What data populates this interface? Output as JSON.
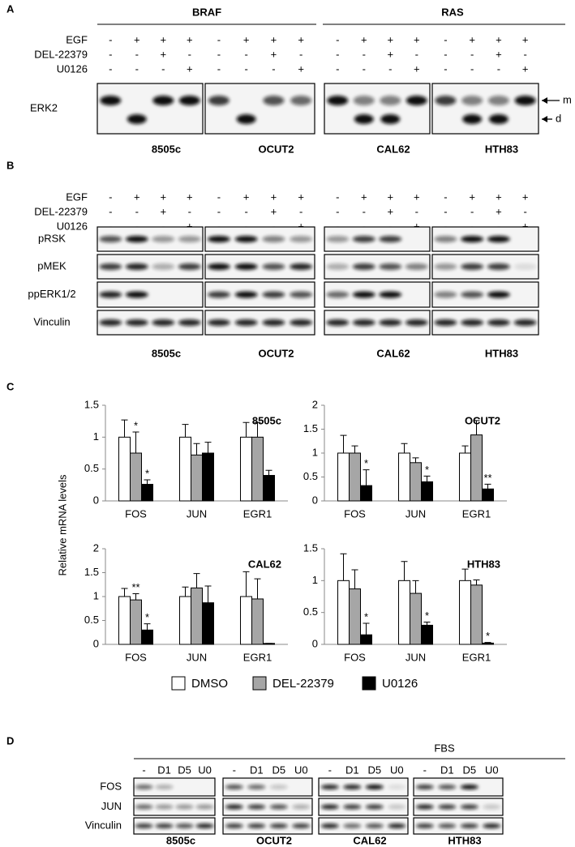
{
  "panel_a": {
    "label": "A",
    "groups": [
      "BRAF",
      "RAS"
    ],
    "treatments": [
      {
        "name": "EGF",
        "signs": [
          "-",
          "+",
          "+",
          "+"
        ]
      },
      {
        "name": "DEL-22379",
        "signs": [
          "-",
          "-",
          "+",
          "-"
        ]
      },
      {
        "name": "U0126",
        "signs": [
          "-",
          "-",
          "-",
          "+"
        ]
      }
    ],
    "blots": [
      "ERK2"
    ],
    "cell_lines": [
      "8505c",
      "OCUT2",
      "CAL62",
      "HTH83"
    ],
    "markers": [
      "m",
      "d"
    ]
  },
  "panel_b": {
    "label": "B",
    "treatments": [
      {
        "name": "EGF",
        "signs": [
          "-",
          "+",
          "+",
          "+"
        ]
      },
      {
        "name": "DEL-22379",
        "signs": [
          "-",
          "-",
          "+",
          "-"
        ]
      },
      {
        "name": "U0126",
        "signs": [
          "-",
          "-",
          "-",
          "+"
        ]
      }
    ],
    "blots": [
      "pRSK",
      "pMEK",
      "ppERK1/2",
      "Vinculin"
    ],
    "cell_lines": [
      "8505c",
      "OCUT2",
      "CAL62",
      "HTH83"
    ]
  },
  "panel_c": {
    "label": "C",
    "y_label": "Relative mRNA levels"
  },
  "chart_data": [
    {
      "type": "bar",
      "title": "8505c",
      "categories": [
        "FOS",
        "JUN",
        "EGR1"
      ],
      "ylim": [
        0,
        1.5
      ],
      "yticks": [
        0,
        0.5,
        1,
        1.5
      ],
      "series": [
        {
          "name": "DMSO",
          "color": "#ffffff",
          "values": [
            1,
            1,
            1
          ],
          "errors": [
            0.27,
            0.2,
            0.23
          ],
          "annotations": [
            null,
            null,
            null
          ]
        },
        {
          "name": "DEL-22379",
          "color": "#a6a6a6",
          "values": [
            0.75,
            0.72,
            1.0
          ],
          "errors": [
            0.33,
            0.18,
            0.23
          ],
          "annotations": [
            "*",
            null,
            null
          ]
        },
        {
          "name": "U0126",
          "color": "#000000",
          "values": [
            0.26,
            0.75,
            0.4
          ],
          "errors": [
            0.07,
            0.17,
            0.08
          ],
          "annotations": [
            "*",
            null,
            null
          ]
        }
      ]
    },
    {
      "type": "bar",
      "title": "OCUT2",
      "categories": [
        "FOS",
        "JUN",
        "EGR1"
      ],
      "ylim": [
        0,
        2
      ],
      "yticks": [
        0,
        0.5,
        1,
        1.5,
        2
      ],
      "series": [
        {
          "name": "DMSO",
          "color": "#ffffff",
          "values": [
            1,
            1,
            1
          ],
          "errors": [
            0.37,
            0.2,
            0.15
          ],
          "annotations": [
            null,
            null,
            null
          ]
        },
        {
          "name": "DEL-22379",
          "color": "#a6a6a6",
          "values": [
            1.0,
            0.8,
            1.38
          ],
          "errors": [
            0.15,
            0.1,
            0.3
          ],
          "annotations": [
            null,
            null,
            null
          ]
        },
        {
          "name": "U0126",
          "color": "#000000",
          "values": [
            0.32,
            0.4,
            0.25
          ],
          "errors": [
            0.33,
            0.12,
            0.1
          ],
          "annotations": [
            "*",
            "*",
            "**"
          ]
        }
      ]
    },
    {
      "type": "bar",
      "title": "CAL62",
      "categories": [
        "FOS",
        "JUN",
        "EGR1"
      ],
      "ylim": [
        0,
        2
      ],
      "yticks": [
        0,
        0.5,
        1,
        1.5,
        2
      ],
      "series": [
        {
          "name": "DMSO",
          "color": "#ffffff",
          "values": [
            1,
            1,
            1
          ],
          "errors": [
            0.17,
            0.2,
            0.52
          ],
          "annotations": [
            null,
            null,
            null
          ]
        },
        {
          "name": "DEL-22379",
          "color": "#a6a6a6",
          "values": [
            0.93,
            1.18,
            0.95
          ],
          "errors": [
            0.13,
            0.3,
            0.42
          ],
          "annotations": [
            "**",
            null,
            null
          ]
        },
        {
          "name": "U0126",
          "color": "#000000",
          "values": [
            0.3,
            0.87,
            0.02
          ],
          "errors": [
            0.13,
            0.35,
            0
          ],
          "annotations": [
            "*",
            null,
            null
          ]
        }
      ]
    },
    {
      "type": "bar",
      "title": "HTH83",
      "categories": [
        "FOS",
        "JUN",
        "EGR1"
      ],
      "ylim": [
        0,
        1.5
      ],
      "yticks": [
        0,
        0.5,
        1,
        1.5
      ],
      "series": [
        {
          "name": "DMSO",
          "color": "#ffffff",
          "values": [
            1,
            1,
            1
          ],
          "errors": [
            0.42,
            0.3,
            0.18
          ],
          "annotations": [
            null,
            null,
            null
          ]
        },
        {
          "name": "DEL-22379",
          "color": "#a6a6a6",
          "values": [
            0.87,
            0.8,
            0.93
          ],
          "errors": [
            0.3,
            0.2,
            0.08
          ],
          "annotations": [
            null,
            null,
            null
          ]
        },
        {
          "name": "U0126",
          "color": "#000000",
          "values": [
            0.15,
            0.3,
            0.02
          ],
          "errors": [
            0.18,
            0.05,
            0.01
          ],
          "annotations": [
            "*",
            "*",
            "*"
          ]
        }
      ]
    }
  ],
  "panel_d": {
    "label": "D",
    "treatment": "FBS",
    "lanes": [
      "-",
      "D1",
      "D5",
      "U0"
    ],
    "blots": [
      "FOS",
      "JUN",
      "Vinculin"
    ],
    "cell_lines": [
      "8505c",
      "OCUT2",
      "CAL62",
      "HTH83"
    ]
  }
}
